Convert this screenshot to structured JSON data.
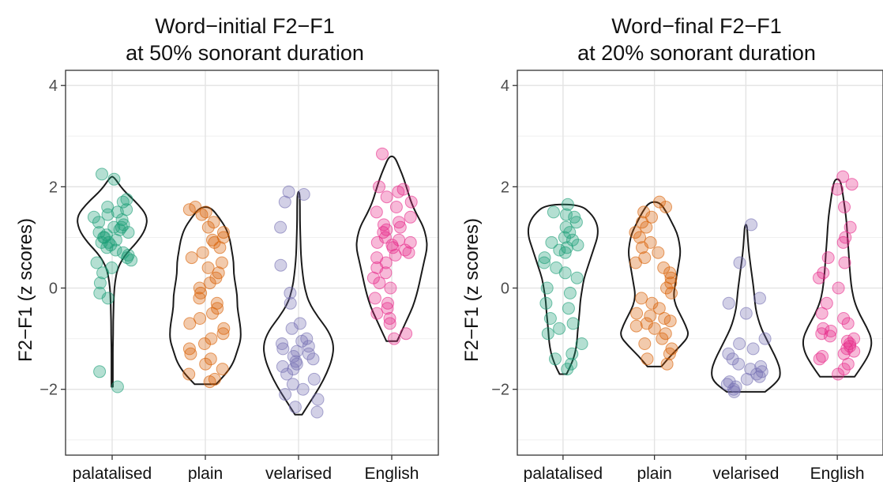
{
  "chart_data": [
    {
      "type": "violin",
      "title_line1": "Word−initial F2−F1",
      "title_line2": "at 50% sonorant duration",
      "ylabel": "F2−F1 (z scores)",
      "ylim": [
        -3.3,
        4.3
      ],
      "yticks": [
        -2,
        0,
        2,
        4
      ],
      "ytick_labels": [
        "−2",
        "0",
        "2",
        "4"
      ],
      "grid": true,
      "categories": [
        "palatalised",
        "plain",
        "velarised",
        "English"
      ],
      "colors": [
        "#1b9e77",
        "#d95f02",
        "#7570b3",
        "#e7298a"
      ],
      "series": [
        {
          "ymin": -1.95,
          "ymax": 2.2,
          "density": [
            0.02,
            0.02,
            0.02,
            0.02,
            0.03,
            0.03,
            0.04,
            0.05,
            0.08,
            0.15,
            0.35,
            0.7,
            0.95,
            1.0,
            0.7,
            0.3,
            0.05
          ],
          "points": [
            2.25,
            2.15,
            1.75,
            1.7,
            1.6,
            1.55,
            1.5,
            1.45,
            1.4,
            1.35,
            1.3,
            1.25,
            1.2,
            1.2,
            1.15,
            1.1,
            1.1,
            1.05,
            1.0,
            1.0,
            0.95,
            0.9,
            0.9,
            0.85,
            0.8,
            0.75,
            0.7,
            0.65,
            0.6,
            0.55,
            0.5,
            0.4,
            0.3,
            0.1,
            -0.1,
            -0.2,
            -1.65,
            -1.95
          ]
        },
        {
          "ymin": -1.9,
          "ymax": 1.6,
          "density": [
            0.3,
            0.6,
            0.8,
            0.9,
            1.0,
            1.0,
            0.95,
            0.9,
            0.9,
            0.85,
            0.8,
            0.8,
            0.75,
            0.7,
            0.6,
            0.4,
            0.15
          ],
          "points": [
            1.6,
            1.55,
            1.5,
            1.45,
            1.3,
            1.2,
            1.1,
            1.0,
            0.95,
            0.9,
            0.8,
            0.7,
            0.6,
            0.5,
            0.4,
            0.3,
            0.2,
            0.1,
            0.0,
            -0.1,
            -0.2,
            -0.3,
            -0.4,
            -0.5,
            -0.6,
            -0.7,
            -0.8,
            -0.9,
            -1.0,
            -1.1,
            -1.2,
            -1.3,
            -1.4,
            -1.5,
            -1.6,
            -1.7,
            -1.8,
            -1.85
          ]
        },
        {
          "ymin": -2.5,
          "ymax": 1.9,
          "density": [
            0.1,
            0.35,
            0.6,
            0.8,
            0.95,
            1.0,
            0.85,
            0.55,
            0.3,
            0.18,
            0.12,
            0.08,
            0.06,
            0.05,
            0.04,
            0.04,
            0.03
          ],
          "points": [
            1.9,
            1.85,
            1.7,
            1.2,
            0.45,
            -0.1,
            -0.3,
            -0.7,
            -0.8,
            -1.0,
            -1.05,
            -1.1,
            -1.15,
            -1.2,
            -1.25,
            -1.3,
            -1.35,
            -1.4,
            -1.45,
            -1.5,
            -1.55,
            -1.6,
            -1.7,
            -1.8,
            -1.9,
            -2.0,
            -2.1,
            -2.2,
            -2.35,
            -2.45
          ]
        },
        {
          "ymin": -1.05,
          "ymax": 2.6,
          "density": [
            0.15,
            0.3,
            0.45,
            0.6,
            0.7,
            0.78,
            0.85,
            0.92,
            1.0,
            0.98,
            0.88,
            0.7,
            0.55,
            0.45,
            0.35,
            0.22,
            0.08
          ],
          "points": [
            2.65,
            2.0,
            1.95,
            1.9,
            1.8,
            1.7,
            1.6,
            1.5,
            1.4,
            1.3,
            1.25,
            1.2,
            1.15,
            1.1,
            1.0,
            0.95,
            0.9,
            0.9,
            0.85,
            0.8,
            0.75,
            0.7,
            0.65,
            0.6,
            0.5,
            0.4,
            0.3,
            0.2,
            0.1,
            0.0,
            -0.2,
            -0.3,
            -0.4,
            -0.5,
            -0.6,
            -0.7,
            -0.9,
            -1.0
          ]
        }
      ]
    },
    {
      "type": "violin",
      "title_line1": "Word−final F2−F1",
      "title_line2": "at 20% sonorant duration",
      "ylabel": "F2−F1 (z scores)",
      "ylim": [
        -3.3,
        4.3
      ],
      "yticks": [
        -2,
        0,
        2,
        4
      ],
      "ytick_labels": [
        "−2",
        "0",
        "2",
        "4"
      ],
      "grid": true,
      "categories": [
        "palatalised",
        "plain",
        "velarised",
        "English"
      ],
      "colors": [
        "#1b9e77",
        "#d95f02",
        "#7570b3",
        "#e7298a"
      ],
      "series": [
        {
          "ymin": -1.7,
          "ymax": 1.65,
          "density": [
            0.1,
            0.25,
            0.35,
            0.4,
            0.42,
            0.45,
            0.48,
            0.5,
            0.55,
            0.6,
            0.7,
            0.8,
            0.9,
            1.0,
            1.0,
            0.85,
            0.5
          ],
          "points": [
            1.65,
            1.5,
            1.45,
            1.4,
            1.3,
            1.2,
            1.1,
            1.0,
            0.95,
            0.9,
            0.85,
            0.8,
            0.75,
            0.7,
            0.6,
            0.5,
            0.4,
            0.3,
            0.2,
            0.0,
            -0.1,
            -0.3,
            -0.4,
            -0.6,
            -0.7,
            -0.8,
            -0.9,
            -1.1,
            -1.3,
            -1.4,
            -1.5,
            -1.6
          ]
        },
        {
          "ymin": -1.55,
          "ymax": 1.7,
          "density": [
            0.2,
            0.45,
            0.75,
            1.0,
            0.9,
            0.75,
            0.6,
            0.55,
            0.6,
            0.65,
            0.7,
            0.75,
            0.72,
            0.65,
            0.5,
            0.35,
            0.15
          ],
          "points": [
            1.7,
            1.6,
            1.5,
            1.4,
            1.3,
            1.2,
            1.1,
            1.0,
            0.9,
            0.8,
            0.7,
            0.6,
            0.5,
            0.4,
            0.3,
            0.2,
            0.1,
            0.0,
            -0.1,
            -0.2,
            -0.3,
            -0.4,
            -0.5,
            -0.55,
            -0.6,
            -0.65,
            -0.7,
            -0.75,
            -0.8,
            -0.9,
            -1.0,
            -1.1,
            -1.2,
            -1.3,
            -1.4,
            -1.5
          ]
        },
        {
          "ymin": -2.05,
          "ymax": 1.25,
          "density": [
            0.55,
            0.95,
            1.0,
            0.9,
            0.75,
            0.6,
            0.45,
            0.35,
            0.28,
            0.25,
            0.22,
            0.18,
            0.14,
            0.1,
            0.07,
            0.05,
            0.03
          ],
          "points": [
            1.25,
            0.5,
            -0.2,
            -0.3,
            -0.5,
            -1.0,
            -1.1,
            -1.2,
            -1.3,
            -1.4,
            -1.5,
            -1.55,
            -1.6,
            -1.65,
            -1.7,
            -1.75,
            -1.8,
            -1.85,
            -1.9,
            -1.95,
            -2.0,
            -2.05
          ]
        },
        {
          "ymin": -1.75,
          "ymax": 2.15,
          "density": [
            0.5,
            0.75,
            0.95,
            1.0,
            0.85,
            0.65,
            0.5,
            0.42,
            0.38,
            0.35,
            0.33,
            0.3,
            0.28,
            0.25,
            0.2,
            0.15,
            0.08
          ],
          "points": [
            2.2,
            2.05,
            1.95,
            1.6,
            1.2,
            1.0,
            0.9,
            0.6,
            0.5,
            0.3,
            0.2,
            0.0,
            -0.3,
            -0.5,
            -0.6,
            -0.7,
            -0.8,
            -0.85,
            -0.9,
            -0.95,
            -1.0,
            -1.05,
            -1.1,
            -1.15,
            -1.2,
            -1.25,
            -1.3,
            -1.35,
            -1.4,
            -1.5,
            -1.6,
            -1.7
          ]
        }
      ]
    }
  ]
}
